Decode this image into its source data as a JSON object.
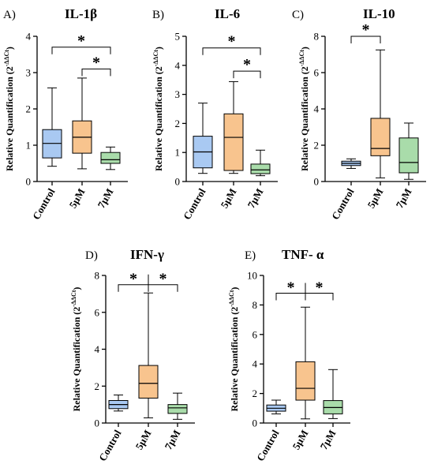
{
  "chart_data": [
    {
      "type": "boxplot",
      "letter": "A)",
      "title": "IL-1β",
      "ylabel": "Relative Quantification (2",
      "ylabel_sup": "-ΔΔCt",
      "ylabel_close": ")",
      "ylim": [
        0,
        4
      ],
      "yticks": [
        0,
        1,
        2,
        3,
        4
      ],
      "categories": [
        "Control",
        "5µM",
        "7µM"
      ],
      "colors": [
        "#a9c9f2",
        "#f8c48e",
        "#a9dcaa"
      ],
      "boxes": [
        {
          "min": 0.42,
          "q1": 0.65,
          "median": 1.05,
          "q3": 1.43,
          "max": 2.58
        },
        {
          "min": 0.35,
          "q1": 0.78,
          "median": 1.22,
          "q3": 1.67,
          "max": 2.85
        },
        {
          "min": 0.33,
          "q1": 0.5,
          "median": 0.6,
          "q3": 0.8,
          "max": 0.95
        }
      ],
      "significance": [
        {
          "style": "bracket",
          "from": 0,
          "to": 2,
          "y": 3.7,
          "label": "*"
        },
        {
          "style": "bracket",
          "from": 1,
          "to": 2,
          "y": 3.1,
          "label": "*"
        }
      ]
    },
    {
      "type": "boxplot",
      "letter": "B)",
      "title": "IL-6",
      "ylabel": "Relative Quantification (2",
      "ylabel_sup": "-ΔΔCt",
      "ylabel_close": ")",
      "ylim": [
        0,
        5
      ],
      "yticks": [
        0,
        1,
        2,
        3,
        4,
        5
      ],
      "categories": [
        "Control",
        "5µM",
        "7µM"
      ],
      "colors": [
        "#a9c9f2",
        "#f8c48e",
        "#a9dcaa"
      ],
      "boxes": [
        {
          "min": 0.28,
          "q1": 0.47,
          "median": 1.02,
          "q3": 1.56,
          "max": 2.7
        },
        {
          "min": 0.28,
          "q1": 0.38,
          "median": 1.52,
          "q3": 2.33,
          "max": 3.44
        },
        {
          "min": 0.2,
          "q1": 0.27,
          "median": 0.4,
          "q3": 0.6,
          "max": 1.08
        }
      ],
      "significance": [
        {
          "style": "bracket",
          "from": 0,
          "to": 2,
          "y": 4.6,
          "label": "*"
        },
        {
          "style": "bracket",
          "from": 1,
          "to": 2,
          "y": 3.8,
          "label": "*"
        }
      ]
    },
    {
      "type": "boxplot",
      "letter": "C)",
      "title": "IL-10",
      "ylabel": "Relative Quantification (2",
      "ylabel_sup": "-ΔΔCt",
      "ylabel_close": ")",
      "ylim": [
        0,
        8
      ],
      "yticks": [
        0,
        2,
        4,
        6,
        8
      ],
      "categories": [
        "Control",
        "5µM",
        "7µM"
      ],
      "colors": [
        "#a9c9f2",
        "#f8c48e",
        "#a9dcaa"
      ],
      "boxes": [
        {
          "min": 0.72,
          "q1": 0.88,
          "median": 1.0,
          "q3": 1.12,
          "max": 1.25
        },
        {
          "min": 0.2,
          "q1": 1.42,
          "median": 1.82,
          "q3": 3.48,
          "max": 7.25
        },
        {
          "min": 0.12,
          "q1": 0.48,
          "median": 1.05,
          "q3": 2.4,
          "max": 3.22
        }
      ],
      "significance": [
        {
          "style": "bracket",
          "from": 0,
          "to": 1,
          "y": 8.0,
          "label": "*"
        }
      ]
    },
    {
      "type": "boxplot",
      "letter": "D)",
      "title": "IFN-γ",
      "ylabel": "Relative Quantification (2",
      "ylabel_sup": "-ΔΔCt",
      "ylabel_close": ")",
      "ylim": [
        0,
        8
      ],
      "yticks": [
        0,
        2,
        4,
        6,
        8
      ],
      "categories": [
        "Control",
        "5µM",
        "7µM"
      ],
      "colors": [
        "#a9c9f2",
        "#f8c48e",
        "#a9dcaa"
      ],
      "boxes": [
        {
          "min": 0.65,
          "q1": 0.78,
          "median": 1.0,
          "q3": 1.22,
          "max": 1.52
        },
        {
          "min": 0.28,
          "q1": 1.35,
          "median": 2.15,
          "q3": 3.12,
          "max": 7.05
        },
        {
          "min": 0.2,
          "q1": 0.52,
          "median": 0.82,
          "q3": 1.0,
          "max": 1.62
        }
      ],
      "significance": [
        {
          "style": "split",
          "from": 0,
          "to": 2,
          "center": 1,
          "y": 7.5,
          "label": "*"
        }
      ]
    },
    {
      "type": "boxplot",
      "letter": "E)",
      "title": "TNF- α",
      "ylabel": "Relative Quantification (2",
      "ylabel_sup": "-ΔΔCt",
      "ylabel_close": ")",
      "ylim": [
        0,
        10
      ],
      "yticks": [
        0,
        2,
        4,
        6,
        8,
        10
      ],
      "categories": [
        "Control",
        "5µM",
        "7µM"
      ],
      "colors": [
        "#a9c9f2",
        "#f8c48e",
        "#a9dcaa"
      ],
      "boxes": [
        {
          "min": 0.62,
          "q1": 0.8,
          "median": 1.0,
          "q3": 1.22,
          "max": 1.55
        },
        {
          "min": 0.28,
          "q1": 1.55,
          "median": 2.35,
          "q3": 4.15,
          "max": 7.85
        },
        {
          "min": 0.3,
          "q1": 0.62,
          "median": 1.05,
          "q3": 1.52,
          "max": 3.62
        }
      ],
      "significance": [
        {
          "style": "split",
          "from": 0,
          "to": 2,
          "center": 1,
          "y": 8.8,
          "label": "*"
        }
      ]
    }
  ]
}
